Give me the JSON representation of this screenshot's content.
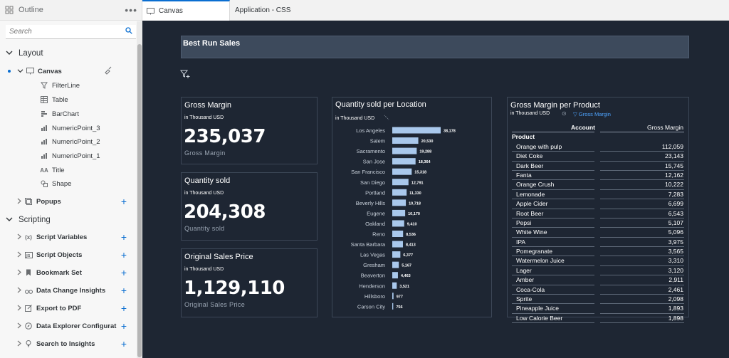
{
  "outline": {
    "title": "Outline",
    "search_placeholder": "Search",
    "layout_label": "Layout",
    "canvas_label": "Canvas",
    "children": [
      "FilterLine",
      "Table",
      "BarChart",
      "NumericPoint_3",
      "NumericPoint_2",
      "NumericPoint_1",
      "Title",
      "Shape"
    ],
    "popups_label": "Popups",
    "scripting_label": "Scripting",
    "scripting_items": [
      "Script Variables",
      "Script Objects",
      "Bookmark Set",
      "Data Change Insights",
      "Export to PDF",
      "Data Explorer Configurat",
      "Search to Insights"
    ]
  },
  "tabs": {
    "canvas": "Canvas",
    "css": "Application - CSS"
  },
  "canvas": {
    "title": "Best Run Sales",
    "kpis": [
      {
        "title": "Gross Margin",
        "unit": "in Thousand USD",
        "value": "235,037",
        "label": "Gross Margin"
      },
      {
        "title": "Quantity sold",
        "unit": "in Thousand USD",
        "value": "204,308",
        "label": "Quantity sold"
      },
      {
        "title": "Original Sales Price",
        "unit": "in Thousand USD",
        "value": "1,129,110",
        "label": "Original Sales Price"
      }
    ],
    "bar": {
      "title": "Quantity sold per Location",
      "unit": "in Thousand USD"
    },
    "table": {
      "title": "Gross Margin per Product",
      "unit": "in Thousand USD",
      "filter": "Gross Margin",
      "col_account": "Account",
      "col_gm": "Gross Margin",
      "group": "Product",
      "rows": [
        [
          "Orange with pulp",
          "112,059"
        ],
        [
          "Diet Coke",
          "23,143"
        ],
        [
          "Dark Beer",
          "15,745"
        ],
        [
          "Fanta",
          "12,162"
        ],
        [
          "Orange Crush",
          "10,222"
        ],
        [
          "Lemonade",
          "7,283"
        ],
        [
          "Apple Cider",
          "6,699"
        ],
        [
          "Root Beer",
          "6,543"
        ],
        [
          "Pepsi",
          "5,107"
        ],
        [
          "White Wine",
          "5,096"
        ],
        [
          "IPA",
          "3,975"
        ],
        [
          "Pomegranate",
          "3,565"
        ],
        [
          "Watermelon Juice",
          "3,310"
        ],
        [
          "Lager",
          "3,120"
        ],
        [
          "Amber",
          "2,911"
        ],
        [
          "Coca-Cola",
          "2,461"
        ],
        [
          "Sprite",
          "2,098"
        ],
        [
          "Pineapple Juice",
          "1,893"
        ],
        [
          "Low Calorie Beer",
          "1,898"
        ]
      ]
    }
  },
  "chart_data": {
    "type": "bar",
    "orientation": "horizontal",
    "title": "Quantity sold per Location",
    "subtitle": "in Thousand USD",
    "categories": [
      "Los Angeles",
      "Salem",
      "Sacramento",
      "San Jose",
      "San Francisco",
      "San Diego",
      "Portland",
      "Beverly Hills",
      "Eugene",
      "Oakland",
      "Reno",
      "Santa Barbara",
      "Las Vegas",
      "Gresham",
      "Beaverton",
      "Henderson",
      "Hillsboro",
      "Carson City"
    ],
    "values": [
      38178,
      20530,
      19288,
      18364,
      15318,
      12791,
      11330,
      10718,
      10170,
      9410,
      8536,
      8413,
      6377,
      5167,
      4463,
      3521,
      977,
      756
    ],
    "labels": [
      "38,178",
      "20,530",
      "19,288",
      "18,364",
      "15,318",
      "12,791",
      "11,330",
      "10,718",
      "10,170",
      "9,410",
      "8,536",
      "8,413",
      "6,377",
      "5,167",
      "4,463",
      "3,521",
      "977",
      "756"
    ],
    "bar_color": "#a9c8ec"
  },
  "colors": {
    "accent": "#0a6ed1",
    "canvas_bg": "#1e2633",
    "title_bar": "#3d4a5c"
  }
}
